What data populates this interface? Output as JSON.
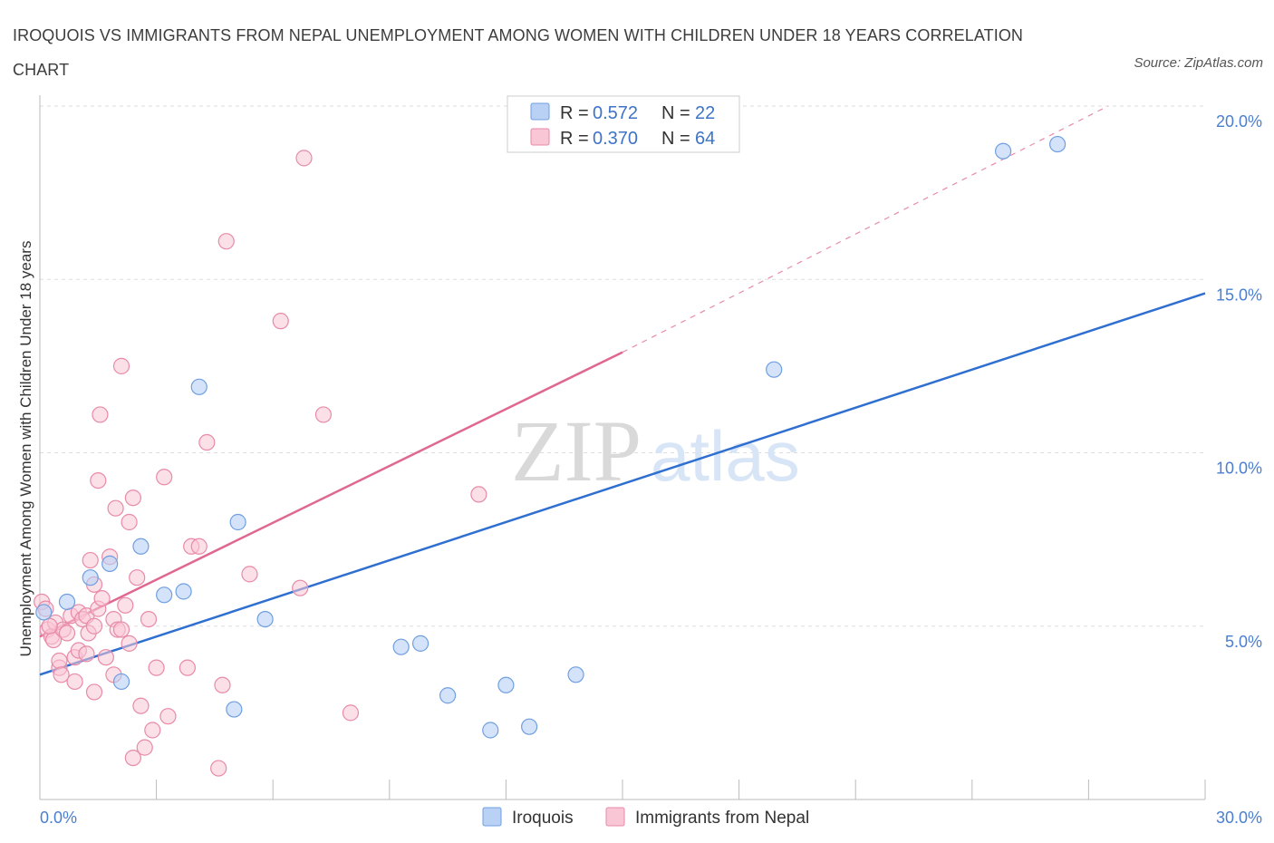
{
  "title": "IROQUOIS VS IMMIGRANTS FROM NEPAL UNEMPLOYMENT AMONG WOMEN WITH CHILDREN UNDER 18 YEARS CORRELATION CHART",
  "source": "Source: ZipAtlas.com",
  "watermark": {
    "zip": "ZIP",
    "atlas": "atlas"
  },
  "colors": {
    "iroquois_fill": "#b8d1f5",
    "iroquois_stroke": "#6f9fe0",
    "iroquois_line": "#2f6fd0",
    "nepal_fill": "#f9c6d6",
    "nepal_stroke": "#e88aa8",
    "nepal_line": "#e06890",
    "tick_text": "#4a7fd0",
    "grid": "#dddddd"
  },
  "legend": {
    "rows": [
      {
        "r_label": "R =",
        "r_value": "0.572",
        "n_label": "N =",
        "n_value": "22"
      },
      {
        "r_label": "R =",
        "r_value": "0.370",
        "n_label": "N =",
        "n_value": "64"
      }
    ]
  },
  "chart_data": {
    "type": "scatter",
    "title": "IROQUOIS VS IMMIGRANTS FROM NEPAL UNEMPLOYMENT AMONG WOMEN WITH CHILDREN UNDER 18 YEARS CORRELATION CHART",
    "xlabel": "",
    "ylabel": "Unemployment Among Women with Children Under 18 years",
    "xlim": [
      0,
      30
    ],
    "ylim": [
      0,
      20
    ],
    "x_tick_labels": [
      "0.0%",
      "30.0%"
    ],
    "y_ticks": [
      5,
      10,
      15,
      20
    ],
    "y_tick_labels": [
      "5.0%",
      "10.0%",
      "15.0%",
      "20.0%"
    ],
    "grid": true,
    "legend_placement": "bottom",
    "series": [
      {
        "name": "Iroquois",
        "r": 0.572,
        "n": 22,
        "trend": {
          "x": [
            0,
            30
          ],
          "y": [
            3.6,
            14.6
          ]
        },
        "points": [
          [
            0.1,
            5.4
          ],
          [
            0.7,
            5.7
          ],
          [
            1.3,
            6.4
          ],
          [
            1.8,
            6.8
          ],
          [
            2.1,
            3.4
          ],
          [
            2.6,
            7.3
          ],
          [
            3.2,
            5.9
          ],
          [
            3.7,
            6.0
          ],
          [
            4.1,
            11.9
          ],
          [
            5.0,
            2.6
          ],
          [
            5.1,
            8.0
          ],
          [
            5.8,
            5.2
          ],
          [
            9.3,
            4.4
          ],
          [
            9.8,
            4.5
          ],
          [
            10.5,
            3.0
          ],
          [
            11.6,
            2.0
          ],
          [
            12.0,
            3.3
          ],
          [
            12.6,
            2.1
          ],
          [
            13.8,
            3.6
          ],
          [
            18.9,
            12.4
          ],
          [
            24.8,
            18.7
          ],
          [
            26.2,
            18.9
          ]
        ]
      },
      {
        "name": "Immigrants from Nepal",
        "r": 0.37,
        "n": 64,
        "trend": {
          "x": [
            0,
            15
          ],
          "y": [
            4.7,
            12.9
          ]
        },
        "trend_dashed": {
          "x": [
            15,
            27.5
          ],
          "y": [
            12.9,
            20.0
          ]
        },
        "points": [
          [
            0.05,
            5.7
          ],
          [
            0.15,
            5.5
          ],
          [
            0.2,
            4.9
          ],
          [
            0.3,
            4.7
          ],
          [
            0.35,
            4.6
          ],
          [
            0.4,
            5.1
          ],
          [
            0.5,
            3.8
          ],
          [
            0.5,
            4.0
          ],
          [
            0.6,
            4.9
          ],
          [
            0.7,
            4.8
          ],
          [
            0.8,
            5.3
          ],
          [
            0.9,
            4.1
          ],
          [
            0.9,
            3.4
          ],
          [
            1.0,
            4.3
          ],
          [
            1.0,
            5.4
          ],
          [
            1.1,
            5.2
          ],
          [
            1.2,
            5.3
          ],
          [
            1.2,
            4.2
          ],
          [
            1.25,
            4.8
          ],
          [
            1.3,
            6.9
          ],
          [
            1.4,
            6.2
          ],
          [
            1.4,
            5.0
          ],
          [
            1.4,
            3.1
          ],
          [
            1.5,
            9.2
          ],
          [
            1.5,
            5.5
          ],
          [
            1.55,
            11.1
          ],
          [
            1.6,
            5.8
          ],
          [
            1.7,
            4.1
          ],
          [
            1.8,
            7.0
          ],
          [
            1.9,
            3.6
          ],
          [
            1.9,
            5.2
          ],
          [
            1.95,
            8.4
          ],
          [
            2.0,
            4.9
          ],
          [
            2.1,
            4.9
          ],
          [
            2.1,
            12.5
          ],
          [
            2.2,
            5.6
          ],
          [
            2.3,
            4.5
          ],
          [
            2.3,
            8.0
          ],
          [
            2.4,
            8.7
          ],
          [
            2.4,
            1.2
          ],
          [
            2.5,
            6.4
          ],
          [
            2.6,
            2.7
          ],
          [
            2.7,
            1.5
          ],
          [
            2.8,
            5.2
          ],
          [
            2.9,
            2.0
          ],
          [
            3.0,
            3.8
          ],
          [
            3.2,
            9.3
          ],
          [
            3.3,
            2.4
          ],
          [
            3.8,
            3.8
          ],
          [
            3.9,
            7.3
          ],
          [
            4.1,
            7.3
          ],
          [
            4.3,
            10.3
          ],
          [
            4.6,
            0.9
          ],
          [
            4.7,
            3.3
          ],
          [
            4.8,
            16.1
          ],
          [
            5.4,
            6.5
          ],
          [
            6.2,
            13.8
          ],
          [
            6.7,
            6.1
          ],
          [
            6.8,
            18.5
          ],
          [
            7.3,
            11.1
          ],
          [
            8.0,
            2.5
          ],
          [
            11.3,
            8.8
          ],
          [
            0.25,
            5.0
          ],
          [
            0.55,
            3.6
          ]
        ]
      }
    ]
  }
}
